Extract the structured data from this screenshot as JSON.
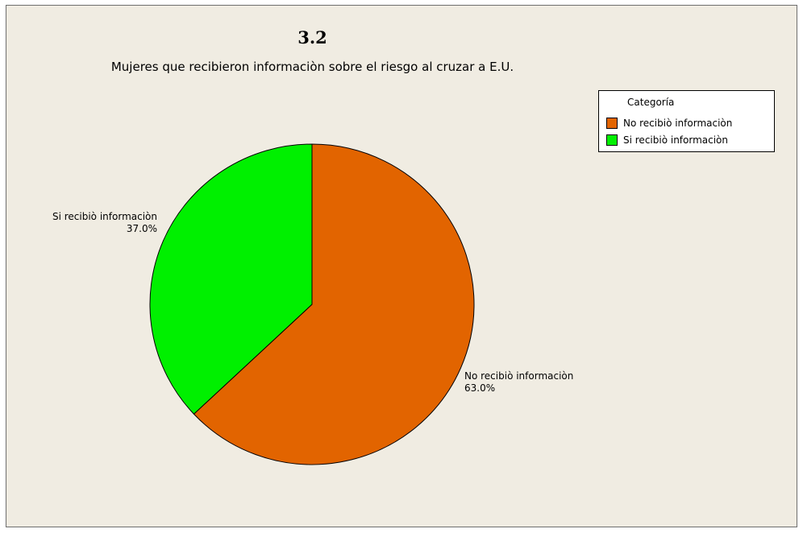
{
  "chart_data": {
    "type": "pie",
    "title": "3.2",
    "subtitle": "Mujeres que recibieron informaciòn sobre el riesgo al cruzar a E.U.",
    "legend": {
      "title": "Categoría",
      "placement": "top-right"
    },
    "slices": [
      {
        "label": "No recibiò informaciòn",
        "value": 63.0,
        "percent_label": "63.0%",
        "color": "#e26400"
      },
      {
        "label": "Si recibiò informaciòn",
        "value": 37.0,
        "percent_label": "37.0%",
        "color": "#00f000"
      }
    ]
  }
}
